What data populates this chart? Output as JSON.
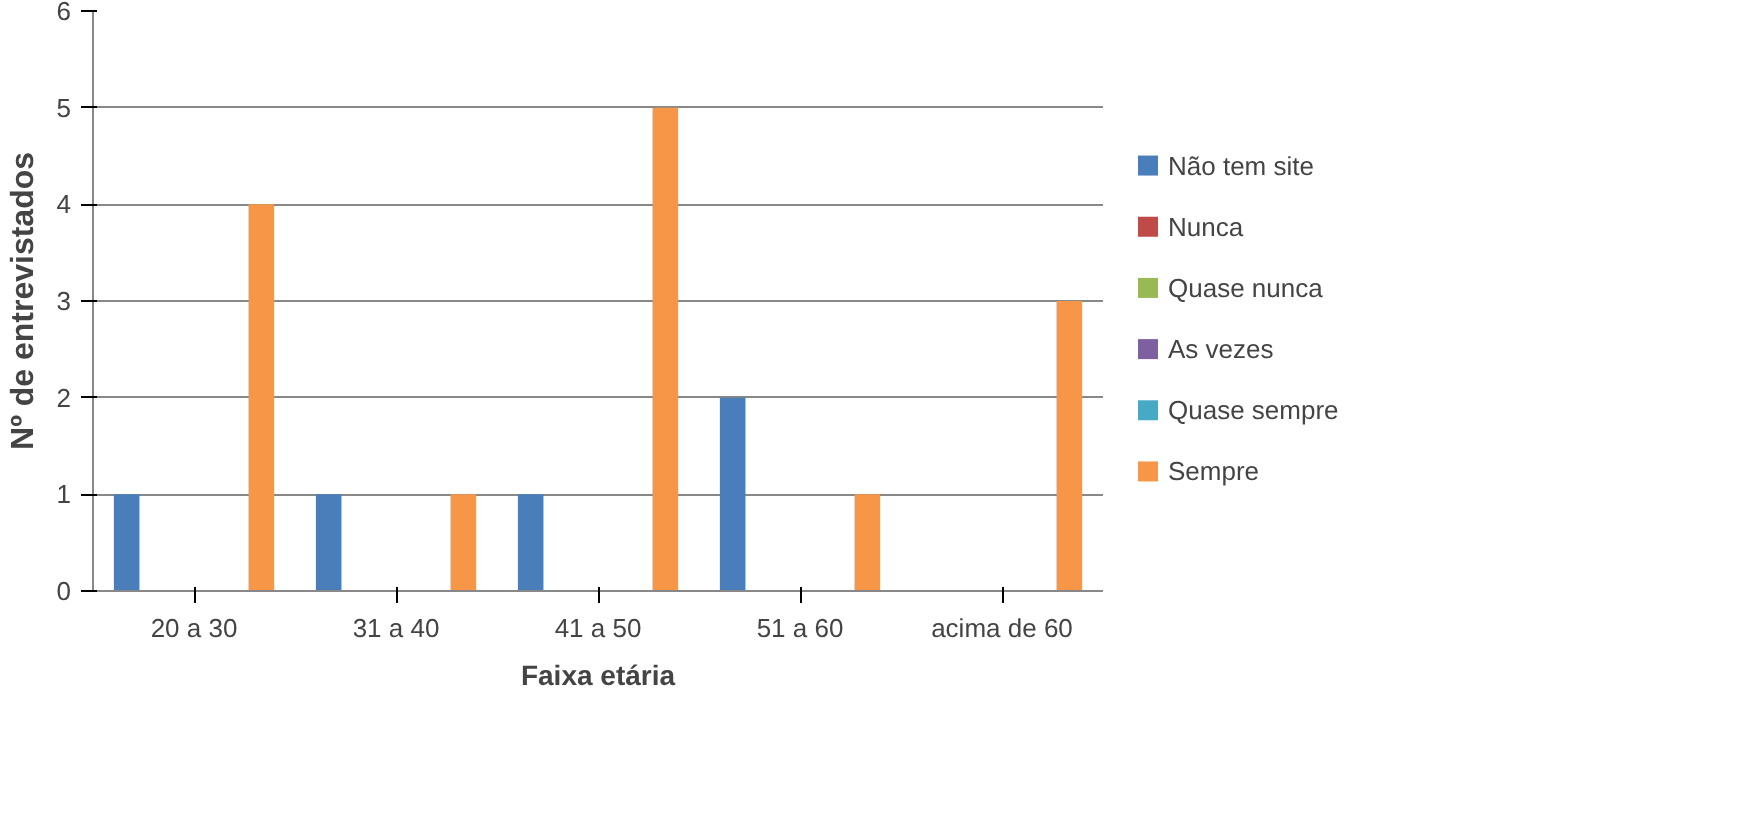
{
  "chart_data": {
    "type": "bar",
    "xlabel": "Faixa etária",
    "ylabel": "Nº de entrevistados",
    "categories": [
      "20 a 30",
      "31 a 40",
      "41 a 50",
      "51 a 60",
      "acima de 60"
    ],
    "series": [
      {
        "name": "Não tem site",
        "color": "#4a7ebb",
        "values": [
          1,
          1,
          1,
          2,
          0
        ]
      },
      {
        "name": "Nunca",
        "color": "#be4b48",
        "values": [
          0,
          0,
          0,
          0,
          0
        ]
      },
      {
        "name": "Quase nunca",
        "color": "#98b954",
        "values": [
          0,
          0,
          0,
          0,
          0
        ]
      },
      {
        "name": "As vezes",
        "color": "#7d60a0",
        "values": [
          0,
          0,
          0,
          0,
          0
        ]
      },
      {
        "name": "Quase sempre",
        "color": "#46aac5",
        "values": [
          0,
          0,
          0,
          0,
          0
        ]
      },
      {
        "name": "Sempre",
        "color": "#f79646",
        "values": [
          4,
          1,
          5,
          1,
          3
        ]
      }
    ],
    "ylim": [
      0,
      6
    ],
    "yticks": [
      0,
      1,
      2,
      3,
      4,
      5,
      6
    ],
    "grid": "y",
    "legend": "right"
  }
}
